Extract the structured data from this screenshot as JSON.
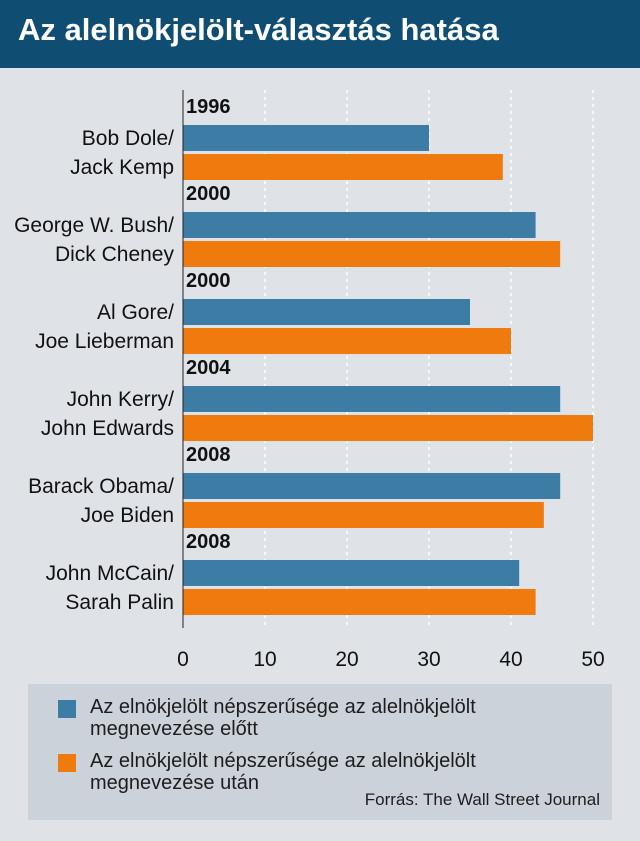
{
  "title": "Az alelnökjelölt-választás hatása",
  "colors": {
    "header_bg": "#0f4d73",
    "series_before": "#3d7ca4",
    "series_after": "#ef7a0d",
    "panel_bg": "#dfe3e8",
    "legend_bg": "#ccd2d9"
  },
  "chart_data": {
    "type": "bar",
    "orientation": "horizontal",
    "title": "Az alelnökjelölt-választás hatása",
    "groups": [
      {
        "year": "1996",
        "line1": "Bob Dole/",
        "line2": "Jack Kemp"
      },
      {
        "year": "2000",
        "line1": "George W. Bush/",
        "line2": "Dick Cheney"
      },
      {
        "year": "2000",
        "line1": "Al Gore/",
        "line2": "Joe Lieberman"
      },
      {
        "year": "2004",
        "line1": "John Kerry/",
        "line2": "John Edwards"
      },
      {
        "year": "2008",
        "line1": "Barack Obama/",
        "line2": "Joe Biden"
      },
      {
        "year": "2008",
        "line1": "John McCain/",
        "line2": "Sarah Palin"
      }
    ],
    "series": [
      {
        "name": "Az elnökjelölt népszerűsége az alelnökjelölt megnevezése előtt",
        "values": [
          30,
          43,
          35,
          46,
          46,
          41
        ]
      },
      {
        "name": "Az elnökjelölt népszerűsége az alelnökjelölt megnevezése után",
        "values": [
          39,
          46,
          40,
          50,
          44,
          43
        ]
      }
    ],
    "xlim": [
      0,
      50
    ],
    "xticks": [
      0,
      10,
      20,
      30,
      40,
      50
    ],
    "grid": true,
    "legend_position": "bottom"
  },
  "legend": {
    "before_line1": "Az elnökjelölt népszerűsége az alelnökjelölt",
    "before_line2": "megnevezése előtt",
    "after_line1": "Az elnökjelölt népszerűsége az alelnökjelölt",
    "after_line2": "megnevezése után"
  },
  "source": "Forrás: The Wall Street Journal"
}
